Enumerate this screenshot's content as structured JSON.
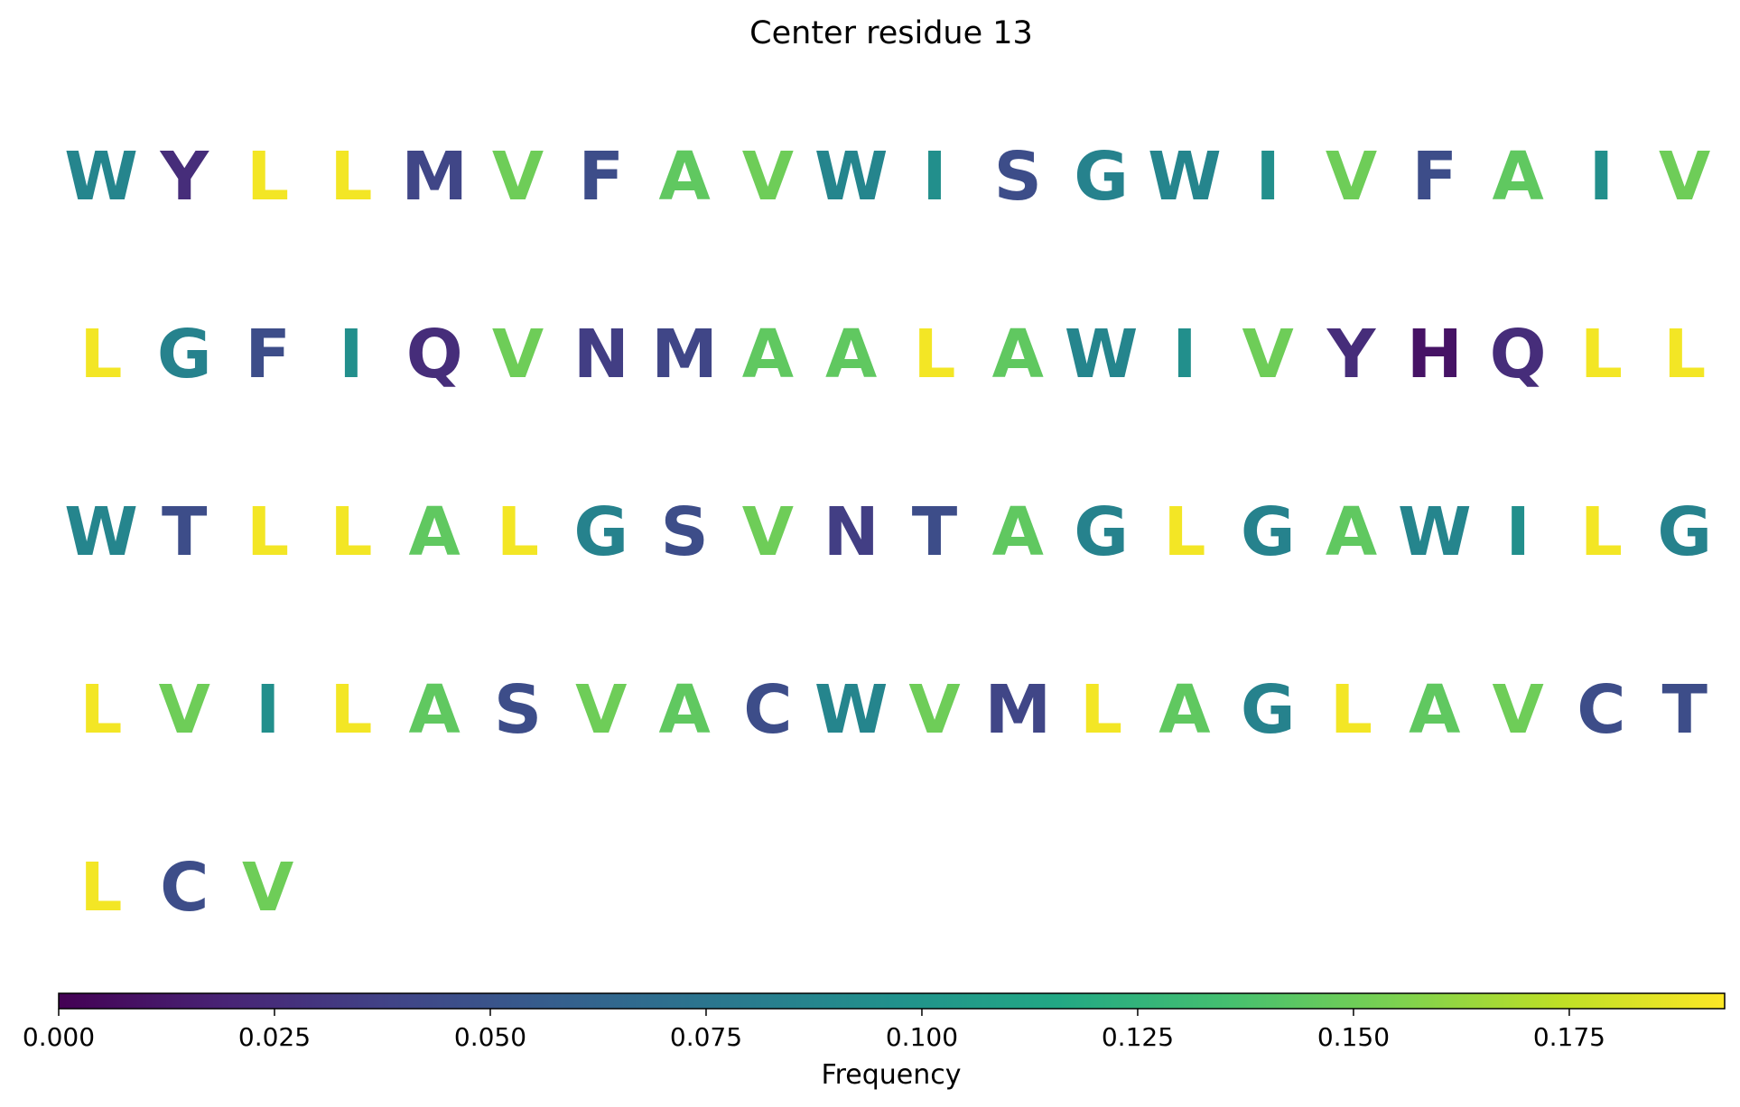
{
  "chart_data": {
    "type": "heatmap",
    "title": "Center residue 13",
    "letters_per_row": 20,
    "residues": [
      {
        "letter": "W",
        "value": 0.087
      },
      {
        "letter": "Y",
        "value": 0.025
      },
      {
        "letter": "L",
        "value": 0.19
      },
      {
        "letter": "L",
        "value": 0.19
      },
      {
        "letter": "M",
        "value": 0.04
      },
      {
        "letter": "V",
        "value": 0.15
      },
      {
        "letter": "F",
        "value": 0.045
      },
      {
        "letter": "A",
        "value": 0.145
      },
      {
        "letter": "V",
        "value": 0.15
      },
      {
        "letter": "W",
        "value": 0.087
      },
      {
        "letter": "I",
        "value": 0.095
      },
      {
        "letter": "S",
        "value": 0.045
      },
      {
        "letter": "G",
        "value": 0.085
      },
      {
        "letter": "W",
        "value": 0.087
      },
      {
        "letter": "I",
        "value": 0.095
      },
      {
        "letter": "V",
        "value": 0.15
      },
      {
        "letter": "F",
        "value": 0.045
      },
      {
        "letter": "A",
        "value": 0.145
      },
      {
        "letter": "I",
        "value": 0.095
      },
      {
        "letter": "V",
        "value": 0.15
      },
      {
        "letter": "L",
        "value": 0.19
      },
      {
        "letter": "G",
        "value": 0.085
      },
      {
        "letter": "F",
        "value": 0.045
      },
      {
        "letter": "I",
        "value": 0.095
      },
      {
        "letter": "Q",
        "value": 0.025
      },
      {
        "letter": "V",
        "value": 0.15
      },
      {
        "letter": "N",
        "value": 0.035
      },
      {
        "letter": "M",
        "value": 0.04
      },
      {
        "letter": "A",
        "value": 0.145
      },
      {
        "letter": "A",
        "value": 0.145
      },
      {
        "letter": "L",
        "value": 0.19
      },
      {
        "letter": "A",
        "value": 0.145
      },
      {
        "letter": "W",
        "value": 0.087
      },
      {
        "letter": "I",
        "value": 0.095
      },
      {
        "letter": "V",
        "value": 0.15
      },
      {
        "letter": "Y",
        "value": 0.025
      },
      {
        "letter": "H",
        "value": 0.01
      },
      {
        "letter": "Q",
        "value": 0.025
      },
      {
        "letter": "L",
        "value": 0.19
      },
      {
        "letter": "L",
        "value": 0.19
      },
      {
        "letter": "W",
        "value": 0.087
      },
      {
        "letter": "T",
        "value": 0.045
      },
      {
        "letter": "L",
        "value": 0.19
      },
      {
        "letter": "L",
        "value": 0.19
      },
      {
        "letter": "A",
        "value": 0.145
      },
      {
        "letter": "L",
        "value": 0.19
      },
      {
        "letter": "G",
        "value": 0.085
      },
      {
        "letter": "S",
        "value": 0.045
      },
      {
        "letter": "V",
        "value": 0.15
      },
      {
        "letter": "N",
        "value": 0.035
      },
      {
        "letter": "T",
        "value": 0.045
      },
      {
        "letter": "A",
        "value": 0.145
      },
      {
        "letter": "G",
        "value": 0.085
      },
      {
        "letter": "L",
        "value": 0.19
      },
      {
        "letter": "G",
        "value": 0.085
      },
      {
        "letter": "A",
        "value": 0.145
      },
      {
        "letter": "W",
        "value": 0.087
      },
      {
        "letter": "I",
        "value": 0.095
      },
      {
        "letter": "L",
        "value": 0.19
      },
      {
        "letter": "G",
        "value": 0.085
      },
      {
        "letter": "L",
        "value": 0.19
      },
      {
        "letter": "V",
        "value": 0.15
      },
      {
        "letter": "I",
        "value": 0.095
      },
      {
        "letter": "L",
        "value": 0.19
      },
      {
        "letter": "A",
        "value": 0.145
      },
      {
        "letter": "S",
        "value": 0.045
      },
      {
        "letter": "V",
        "value": 0.15
      },
      {
        "letter": "A",
        "value": 0.145
      },
      {
        "letter": "C",
        "value": 0.045
      },
      {
        "letter": "W",
        "value": 0.087
      },
      {
        "letter": "V",
        "value": 0.15
      },
      {
        "letter": "M",
        "value": 0.04
      },
      {
        "letter": "L",
        "value": 0.19
      },
      {
        "letter": "A",
        "value": 0.145
      },
      {
        "letter": "G",
        "value": 0.085
      },
      {
        "letter": "L",
        "value": 0.19
      },
      {
        "letter": "A",
        "value": 0.145
      },
      {
        "letter": "V",
        "value": 0.15
      },
      {
        "letter": "C",
        "value": 0.045
      },
      {
        "letter": "T",
        "value": 0.045
      },
      {
        "letter": "L",
        "value": 0.19
      },
      {
        "letter": "C",
        "value": 0.045
      },
      {
        "letter": "V",
        "value": 0.15
      }
    ],
    "colorbar": {
      "colormap": "viridis",
      "range": [
        0,
        0.193
      ],
      "ticks": [
        "0.000",
        "0.025",
        "0.050",
        "0.075",
        "0.100",
        "0.125",
        "0.150",
        "0.175"
      ],
      "tick_values": [
        0,
        0.025,
        0.05,
        0.075,
        0.1,
        0.125,
        0.15,
        0.175
      ],
      "label": "Frequency",
      "orientation": "horizontal",
      "placement": "bottom"
    },
    "grid": false,
    "legend": "none"
  }
}
